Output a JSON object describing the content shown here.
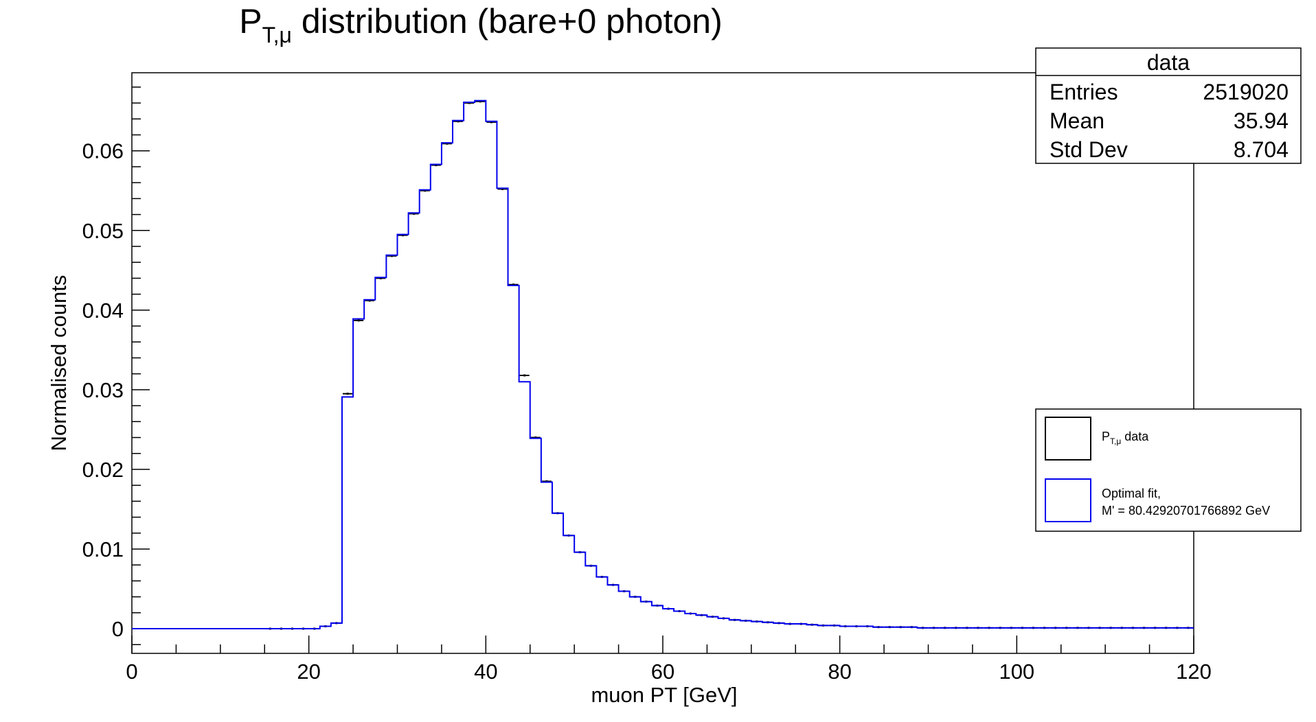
{
  "chart_data": {
    "type": "bar",
    "title_main": "P",
    "title_sub": "T,μ",
    "title_rest": " distribution (bare+0 photon)",
    "xlabel": "muon PT [GeV]",
    "ylabel": "Normalised counts",
    "xlim": [
      0,
      120
    ],
    "ylim": [
      -0.0031,
      0.0698
    ],
    "x_ticks": [
      0,
      20,
      40,
      60,
      80,
      100,
      120
    ],
    "x_tick_labels": [
      "0",
      "20",
      "40",
      "60",
      "80",
      "100",
      "120"
    ],
    "y_ticks": [
      0,
      0.01,
      0.02,
      0.03,
      0.04,
      0.05,
      0.06
    ],
    "y_tick_labels": [
      "0",
      "0.01",
      "0.02",
      "0.03",
      "0.04",
      "0.05",
      "0.06"
    ],
    "grid": false,
    "bin_width": 1.25,
    "x_start": 0,
    "data_values": [
      0,
      0,
      0,
      0,
      0,
      0,
      0,
      0,
      0,
      0,
      0,
      0,
      0,
      0,
      0,
      0,
      0,
      0.0003,
      0.0007,
      0.0295,
      0.0387,
      0.0412,
      0.044,
      0.0468,
      0.0494,
      0.0521,
      0.055,
      0.0582,
      0.0609,
      0.0637,
      0.066,
      0.0662,
      0.0636,
      0.0552,
      0.0432,
      0.0318,
      0.024,
      0.0185,
      0.0145,
      0.0117,
      0.0096,
      0.0079,
      0.0065,
      0.0055,
      0.0047,
      0.004,
      0.0034,
      0.0029,
      0.0025,
      0.0022,
      0.0019,
      0.0017,
      0.0015,
      0.0013,
      0.0011,
      0.001,
      0.0009,
      0.0008,
      0.0007,
      0.0006,
      0.0006,
      0.0005,
      0.0004,
      0.0004,
      0.0003,
      0.0003,
      0.0003,
      0.0002,
      0.0002,
      0.0002,
      0.0002,
      0.0001,
      0.0001,
      0.0001,
      0.0001,
      0.0001,
      0.0001,
      0.0001,
      0.0001,
      0.0001,
      0.0001,
      0.0001,
      0.0001,
      0.0001,
      0.0001,
      0.0001,
      0.0001,
      0.0001,
      0.0001,
      0.0001,
      0.0001,
      0.0001,
      0.0001,
      0.0001,
      0.0001,
      0.0001
    ],
    "fit_values": [
      0,
      0,
      0,
      0,
      0,
      0,
      0,
      0,
      0,
      0,
      0,
      0,
      0,
      0,
      0,
      0,
      0,
      0.0003,
      0.0007,
      0.0291,
      0.0389,
      0.0413,
      0.0441,
      0.0469,
      0.0495,
      0.0522,
      0.0551,
      0.0583,
      0.061,
      0.0638,
      0.0661,
      0.0663,
      0.0637,
      0.0553,
      0.0431,
      0.031,
      0.0239,
      0.0184,
      0.0145,
      0.0117,
      0.0096,
      0.0079,
      0.0065,
      0.0055,
      0.0047,
      0.004,
      0.0034,
      0.0029,
      0.0025,
      0.0022,
      0.0019,
      0.0017,
      0.0015,
      0.0013,
      0.0011,
      0.001,
      0.0009,
      0.0008,
      0.0007,
      0.0006,
      0.0006,
      0.0005,
      0.0004,
      0.0004,
      0.0003,
      0.0003,
      0.0003,
      0.0002,
      0.0002,
      0.0002,
      0.0002,
      0.0001,
      0.0001,
      0.0001,
      0.0001,
      0.0001,
      0.0001,
      0.0001,
      0.0001,
      0.0001,
      0.0001,
      0.0001,
      0.0001,
      0.0001,
      0.0001,
      0.0001,
      0.0001,
      0.0001,
      0.0001,
      0.0001,
      0.0001,
      0.0001,
      0.0001,
      0.0001,
      0.0001,
      0.0001
    ],
    "series": [
      {
        "name_main": "P",
        "name_sub": "T,μ",
        "name_rest": " data",
        "color": "#000000"
      },
      {
        "name_line1": "Optimal fit,",
        "name_line2": "M' = 80.42920701766892 GeV",
        "color": "#0000ee"
      }
    ],
    "stats_box": {
      "title": "data",
      "rows": [
        {
          "label": "Entries",
          "value": "2519020"
        },
        {
          "label": "Mean",
          "value": "35.94"
        },
        {
          "label": "Std Dev",
          "value": "8.704"
        }
      ]
    }
  }
}
